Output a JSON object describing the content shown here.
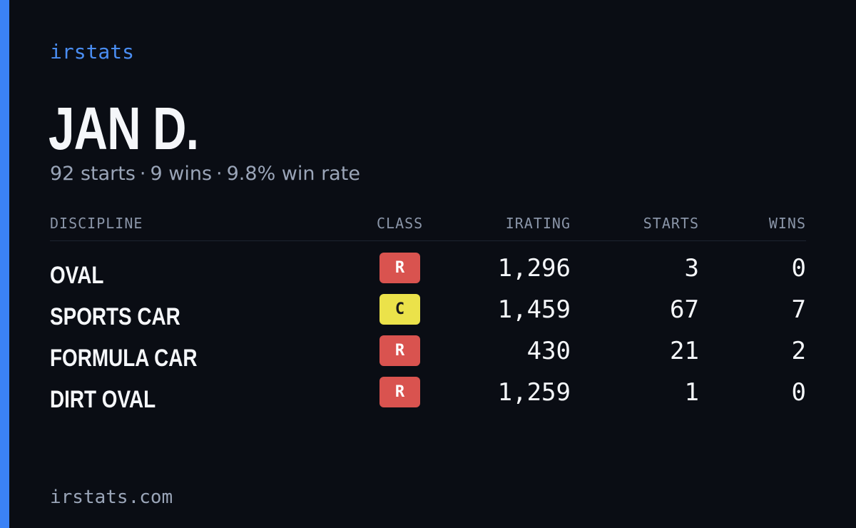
{
  "brand": "irstats",
  "accent_color": "#3b82f6",
  "player": {
    "name": "JAN D.",
    "starts": "92 starts",
    "wins": "9 wins",
    "win_rate": "9.8% win rate",
    "separator": "·"
  },
  "table": {
    "headers": {
      "discipline": "DISCIPLINE",
      "class": "CLASS",
      "irating": "IRATING",
      "starts": "STARTS",
      "wins": "WINS"
    },
    "rows": [
      {
        "discipline": "OVAL",
        "class": "R",
        "class_color": "#d9534f",
        "irating": "1,296",
        "starts": "3",
        "wins": "0"
      },
      {
        "discipline": "SPORTS CAR",
        "class": "C",
        "class_color": "#ebe24a",
        "irating": "1,459",
        "starts": "67",
        "wins": "7"
      },
      {
        "discipline": "FORMULA CAR",
        "class": "R",
        "class_color": "#d9534f",
        "irating": "430",
        "starts": "21",
        "wins": "2"
      },
      {
        "discipline": "DIRT OVAL",
        "class": "R",
        "class_color": "#d9534f",
        "irating": "1,259",
        "starts": "1",
        "wins": "0"
      }
    ]
  },
  "footer": {
    "url": "irstats.com"
  }
}
